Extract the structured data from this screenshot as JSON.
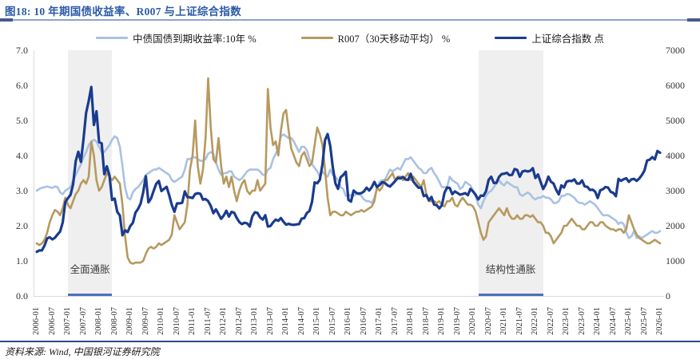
{
  "header": {
    "title": "图18: 10 年期国债收益率、R007 与上证综合指数"
  },
  "footer": {
    "source": "资料来源: Wind, 中国银河证券研究院"
  },
  "colors": {
    "title_blue": "#2b5aa7",
    "title_rule": "#8fa3cf",
    "footer_rule": "#2c478c",
    "region_fill": "#efefef",
    "region_underline": "#4a70bf",
    "bond10y_line": "#a9c1e2",
    "r007_line": "#b7995f",
    "sse_line": "#1a3b8f"
  },
  "chart_data": {
    "type": "line",
    "title": "10 年期国债收益率、R007 与上证综合指数",
    "xlabel": "",
    "ylabel_left": "%",
    "ylabel_right": "点",
    "ylim_left": [
      0.0,
      7.0
    ],
    "ylim_right": [
      0,
      7000
    ],
    "grid": false,
    "legend_position": "top",
    "x_start": "2006-01",
    "x_end": "2026-01",
    "x_interval": "monthly",
    "y_left_ticks": [
      "7.0",
      "6.0",
      "5.0",
      "4.0",
      "3.0",
      "2.0",
      "1.0",
      "0.0"
    ],
    "y_right_ticks": [
      "7000",
      "6000",
      "5000",
      "4000",
      "3000",
      "2000",
      "1000",
      "0"
    ],
    "x_ticks": [
      "2006-01",
      "2006-07",
      "2007-01",
      "2007-07",
      "2008-01",
      "2008-07",
      "2009-01",
      "2009-07",
      "2010-01",
      "2010-07",
      "2011-01",
      "2011-07",
      "2012-01",
      "2012-07",
      "2013-01",
      "2013-07",
      "2014-01",
      "2014-07",
      "2015-01",
      "2015-07",
      "2016-01",
      "2016-07",
      "2017-01",
      "2017-07",
      "2018-01",
      "2018-07",
      "2019-01",
      "2019-07",
      "2020-01",
      "2020-07",
      "2021-01",
      "2021-07",
      "2022-01",
      "2022-07",
      "2023-01",
      "2023-07",
      "2024-01",
      "2024-07",
      "2025-01",
      "2025-07",
      "2026-01"
    ],
    "regions": [
      {
        "label": "全面通胀",
        "start": "2007-01",
        "end": "2008-06"
      },
      {
        "label": "结构性通胀",
        "start": "2020-03",
        "end": "2022-04"
      }
    ],
    "series": [
      {
        "name": "中债国债到期收益率:10年 %",
        "axis": "left",
        "color": "#a9c1e2",
        "values": [
          3.0,
          3.05,
          3.08,
          3.1,
          3.12,
          3.1,
          3.08,
          3.12,
          3.1,
          2.95,
          2.9,
          3.0,
          3.05,
          3.1,
          3.3,
          3.45,
          3.6,
          3.75,
          3.95,
          4.1,
          4.3,
          4.4,
          4.45,
          4.4,
          4.25,
          4.1,
          4.1,
          4.2,
          4.3,
          4.45,
          4.55,
          4.5,
          4.25,
          3.7,
          3.1,
          2.8,
          2.75,
          2.95,
          3.05,
          3.1,
          3.2,
          3.3,
          3.45,
          3.5,
          3.55,
          3.6,
          3.6,
          3.65,
          3.6,
          3.55,
          3.5,
          3.45,
          3.3,
          3.25,
          3.3,
          3.35,
          3.4,
          3.6,
          3.9,
          3.9,
          3.95,
          3.95,
          3.9,
          3.85,
          3.85,
          3.9,
          4.05,
          4.1,
          4.05,
          3.8,
          3.6,
          3.45,
          3.5,
          3.5,
          3.55,
          3.55,
          3.4,
          3.35,
          3.3,
          3.35,
          3.45,
          3.55,
          3.6,
          3.6,
          3.6,
          3.6,
          3.55,
          3.45,
          3.45,
          3.6,
          3.65,
          3.9,
          4.05,
          4.2,
          4.55,
          4.6,
          4.55,
          4.5,
          4.5,
          4.4,
          4.25,
          4.1,
          4.25,
          4.25,
          4.15,
          3.9,
          3.75,
          3.65,
          3.55,
          3.4,
          3.55,
          3.45,
          3.4,
          3.6,
          3.45,
          3.4,
          3.3,
          3.1,
          3.05,
          2.85,
          2.85,
          2.88,
          2.85,
          2.9,
          2.9,
          2.85,
          2.75,
          2.7,
          2.7,
          2.65,
          2.8,
          3.05,
          3.25,
          3.3,
          3.3,
          3.45,
          3.6,
          3.55,
          3.6,
          3.65,
          3.6,
          3.75,
          3.9,
          3.9,
          3.95,
          3.85,
          3.75,
          3.65,
          3.6,
          3.5,
          3.5,
          3.6,
          3.65,
          3.5,
          3.4,
          3.25,
          3.1,
          3.1,
          3.1,
          3.4,
          3.3,
          3.25,
          3.2,
          3.05,
          3.1,
          3.25,
          3.2,
          3.15,
          3.0,
          2.85,
          2.6,
          2.5,
          2.7,
          2.85,
          2.95,
          3.0,
          3.1,
          3.2,
          3.3,
          3.2,
          3.15,
          3.25,
          3.2,
          3.15,
          3.1,
          3.1,
          2.9,
          2.85,
          2.9,
          2.95,
          2.9,
          2.8,
          2.75,
          2.8,
          2.8,
          2.85,
          2.8,
          2.8,
          2.75,
          2.65,
          2.65,
          2.7,
          2.85,
          2.85,
          2.9,
          2.9,
          2.85,
          2.8,
          2.7,
          2.65,
          2.65,
          2.6,
          2.65,
          2.7,
          2.65,
          2.6,
          2.5,
          2.4,
          2.3,
          2.3,
          2.3,
          2.25,
          2.2,
          2.15,
          2.05,
          2.1,
          2.05,
          1.8,
          1.65,
          1.7,
          1.85,
          1.65,
          1.7,
          1.65,
          1.7,
          1.75,
          1.8,
          1.85,
          1.8,
          1.8,
          1.85
        ]
      },
      {
        "name": "R007（30天移动平均） %",
        "axis": "left",
        "color": "#b7995f",
        "values": [
          1.5,
          1.45,
          1.5,
          1.6,
          1.8,
          2.1,
          2.3,
          2.45,
          2.4,
          2.3,
          2.5,
          2.8,
          2.6,
          2.5,
          2.7,
          2.9,
          3.0,
          3.2,
          3.3,
          3.2,
          3.4,
          4.4,
          4.0,
          3.3,
          3.0,
          3.1,
          3.3,
          3.5,
          3.4,
          3.3,
          3.4,
          3.3,
          3.2,
          2.6,
          1.7,
          1.1,
          0.95,
          0.92,
          0.95,
          0.95,
          0.95,
          1.0,
          1.2,
          1.35,
          1.4,
          1.35,
          1.4,
          1.5,
          1.45,
          1.5,
          1.55,
          1.6,
          1.75,
          2.3,
          2.1,
          1.9,
          2.0,
          2.1,
          2.6,
          3.6,
          4.0,
          5.0,
          3.7,
          3.2,
          3.6,
          4.5,
          6.2,
          4.8,
          3.9,
          3.8,
          4.5,
          3.7,
          3.2,
          3.4,
          3.1,
          3.4,
          3.0,
          2.7,
          3.0,
          3.2,
          3.3,
          3.0,
          2.9,
          3.0,
          3.0,
          3.3,
          3.0,
          3.1,
          3.2,
          5.9,
          4.8,
          4.3,
          4.4,
          4.0,
          4.7,
          5.2,
          5.3,
          4.7,
          4.2,
          4.0,
          3.8,
          3.7,
          4.0,
          4.1,
          3.9,
          3.7,
          3.8,
          4.3,
          4.8,
          4.6,
          4.3,
          3.6,
          2.8,
          2.3,
          2.4,
          2.4,
          2.35,
          2.3,
          2.3,
          2.4,
          2.35,
          2.3,
          2.35,
          2.4,
          2.4,
          2.45,
          2.4,
          2.45,
          2.5,
          2.55,
          2.7,
          3.1,
          3.0,
          3.1,
          3.3,
          3.3,
          3.4,
          3.5,
          3.3,
          3.4,
          3.4,
          3.3,
          3.4,
          3.5,
          3.3,
          3.4,
          3.3,
          3.2,
          3.1,
          3.3,
          2.9,
          2.7,
          2.7,
          2.7,
          2.65,
          2.7,
          2.6,
          2.55,
          2.7,
          2.7,
          2.8,
          2.6,
          2.55,
          2.7,
          2.8,
          2.7,
          2.6,
          2.6,
          2.55,
          2.4,
          2.1,
          1.8,
          1.6,
          1.7,
          2.1,
          2.2,
          2.3,
          2.4,
          2.5,
          2.4,
          2.3,
          2.5,
          2.3,
          2.2,
          2.2,
          2.3,
          2.2,
          2.2,
          2.3,
          2.3,
          2.25,
          2.3,
          2.2,
          2.1,
          2.1,
          2.0,
          1.8,
          1.8,
          1.7,
          1.5,
          1.6,
          1.7,
          1.8,
          2.0,
          2.0,
          2.1,
          2.2,
          2.1,
          2.0,
          2.0,
          1.9,
          1.9,
          2.0,
          2.1,
          2.1,
          2.0,
          2.0,
          2.1,
          2.1,
          2.0,
          1.95,
          1.9,
          1.9,
          1.85,
          1.9,
          1.9,
          1.8,
          1.9,
          2.3,
          2.1,
          1.9,
          1.75,
          1.65,
          1.6,
          1.55,
          1.5,
          1.5,
          1.55,
          1.6,
          1.55,
          1.5
        ]
      },
      {
        "name": "上证综合指数 点",
        "axis": "right",
        "color": "#1a3b8f",
        "values": [
          1258,
          1299,
          1298,
          1440,
          1641,
          1672,
          1612,
          1658,
          1752,
          1837,
          2099,
          2675,
          2786,
          2881,
          3183,
          3841,
          4109,
          3820,
          4471,
          5218,
          5552,
          5955,
          4871,
          5262,
          4383,
          4348,
          3472,
          3693,
          3433,
          2736,
          2775,
          2397,
          2294,
          1729,
          1871,
          1821,
          1991,
          2083,
          2373,
          2478,
          2633,
          2959,
          3412,
          2668,
          2779,
          2995,
          3195,
          3277,
          2989,
          3052,
          3109,
          2870,
          2592,
          2398,
          2638,
          2639,
          2656,
          2979,
          2820,
          2808,
          2790,
          2905,
          2928,
          2911,
          2743,
          2762,
          2701,
          2567,
          2359,
          2468,
          2333,
          2199,
          2293,
          2428,
          2262,
          2396,
          2372,
          2225,
          2104,
          2047,
          2086,
          2068,
          1980,
          2269,
          2385,
          2366,
          2237,
          2177,
          2301,
          1979,
          1994,
          2098,
          2175,
          2141,
          2221,
          2116,
          2033,
          2056,
          2033,
          2026,
          2039,
          2048,
          2202,
          2217,
          2364,
          2420,
          2683,
          3235,
          3210,
          3310,
          3748,
          4442,
          4612,
          4277,
          3664,
          3206,
          3053,
          3383,
          3445,
          3539,
          2738,
          2688,
          3004,
          2938,
          2917,
          2930,
          2979,
          3085,
          3005,
          3100,
          3250,
          3104,
          3159,
          3242,
          3223,
          3155,
          3117,
          3192,
          3273,
          3361,
          3349,
          3393,
          3317,
          3307,
          3481,
          3259,
          3169,
          3082,
          3095,
          2847,
          2876,
          2725,
          2821,
          2603,
          2588,
          2494,
          2585,
          2941,
          3090,
          3078,
          2899,
          2979,
          2933,
          2886,
          2905,
          2929,
          2872,
          3050,
          2977,
          2880,
          2750,
          2860,
          2852,
          2985,
          3310,
          3396,
          3218,
          3225,
          3392,
          3473,
          3483,
          3509,
          3442,
          3447,
          3615,
          3591,
          3397,
          3544,
          3568,
          3547,
          3564,
          3640,
          3361,
          3462,
          3252,
          3047,
          3186,
          3399,
          3253,
          3202,
          3024,
          2893,
          3151,
          3089,
          3256,
          3280,
          3273,
          3323,
          3205,
          3202,
          3291,
          3120,
          3110,
          3019,
          3030,
          2975,
          2789,
          3015,
          3041,
          3105,
          3087,
          2967,
          2938,
          2842,
          3336,
          3280,
          3326,
          3352,
          3251,
          3321,
          3336,
          3279,
          3347,
          3444,
          3573,
          3858,
          3883,
          3955,
          3890,
          4130,
          4080
        ]
      }
    ]
  }
}
